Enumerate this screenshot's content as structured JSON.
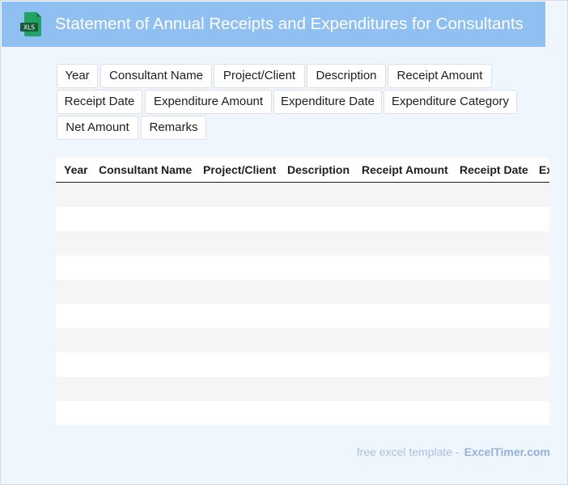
{
  "header": {
    "title": "Statement of Annual Receipts and Expenditures for Consultants",
    "icon": "xls-file-icon",
    "icon_label": "XLS"
  },
  "chips": [
    "Year",
    "Consultant Name",
    "Project/Client",
    "Description",
    "Receipt Amount",
    "Receipt Date",
    "Expenditure Amount",
    "Expenditure Date",
    "Expenditure Category",
    "Net Amount",
    "Remarks"
  ],
  "table": {
    "columns": [
      "Year",
      "Consultant Name",
      "Project/Client",
      "Description",
      "Receipt Amount",
      "Receipt Date",
      "Expenditure Amount"
    ],
    "rows": [
      [],
      [],
      [],
      [],
      [],
      [],
      [],
      [],
      [],
      []
    ]
  },
  "footer": {
    "text": "free excel template -",
    "brand": "ExcelTimer.com"
  },
  "colors": {
    "header_bg": "#8fc0f1",
    "page_bg": "#f0f6fe",
    "icon_green": "#1f7a45"
  }
}
